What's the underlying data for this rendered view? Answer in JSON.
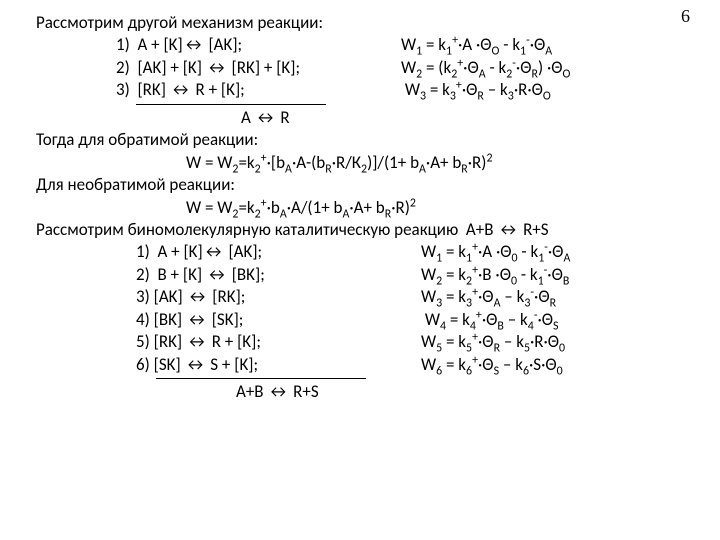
{
  "page_number": "6",
  "font": {
    "family": "Calibri",
    "size_pt": 17,
    "color": "#000000"
  },
  "background_color": "#ffffff",
  "intro_line": "Рассмотрим другой механизм реакции:",
  "mech1": [
    {
      "n": "1)",
      "lhs": "A + [K]↔ [AK];",
      "rhs": "W₁ = k₁⁺·A ·Θₒ - k₁⁻·Θ_A"
    },
    {
      "n": "2)",
      "lhs": "[AK] + [K] ↔ [RK] + [K];",
      "rhs": "W₂ = (k₂⁺·Θ_A - k₂⁻·Θ_R) ·Θₒ"
    },
    {
      "n": "3)",
      "lhs": "[RK] ↔ R + [K];",
      "rhs": "W₃ = k₃⁺·Θ_R – k₃·R·Θₒ"
    }
  ],
  "summary1": "A ↔ R",
  "then_reversible": "Тогда для обратимой реакции:",
  "w_reversible": "W = W₂=k₂⁺·[b_A·A-(b_R·R/К₂)]/(1+ b_A·A+ b_R·R)²",
  "for_irreversible": "Для необратимой реакции:",
  "w_irreversible": "W = W₂=k₂⁺·b_A·A/(1+ b_A·A+ b_R·R)²",
  "bimolecular": "Рассмотрим биномолекулярную каталитическую реакцию  A+B ↔ R+S",
  "mech2": [
    {
      "n": "1)",
      "lhs": "A + [K]↔ [AK];",
      "rhs": "W₁ = k₁⁺·A ·Θ₀ - k₁⁻·Θ_A"
    },
    {
      "n": "2)",
      "lhs": "B + [K] ↔ [BK];",
      "rhs": "W₂ = k₂⁺·B ·Θ₀ - k₁⁻·Θ_B"
    },
    {
      "n": "3)",
      "lhs": "[AK] ↔ [RK];",
      "rhs": "W₃ = k₃⁺·Θ_A – k₃⁻·Θ_R"
    },
    {
      "n": "4)",
      "lhs": "[BK] ↔ [SK];",
      "rhs": "W₄ = k₄⁺·Θ_B – k₄⁻·Θ_S"
    },
    {
      "n": "5)",
      "lhs": "[RK] ↔ R + [K];",
      "rhs": "W₅ = k₅⁺·Θ_R – k₅·R·Θ₀"
    },
    {
      "n": "6)",
      "lhs": "[SK] ↔ S + [K];",
      "rhs": "W₆ = k₆⁺·Θ_S – k₆·S·Θ₀"
    }
  ],
  "summary2": "A+B ↔ R+S"
}
